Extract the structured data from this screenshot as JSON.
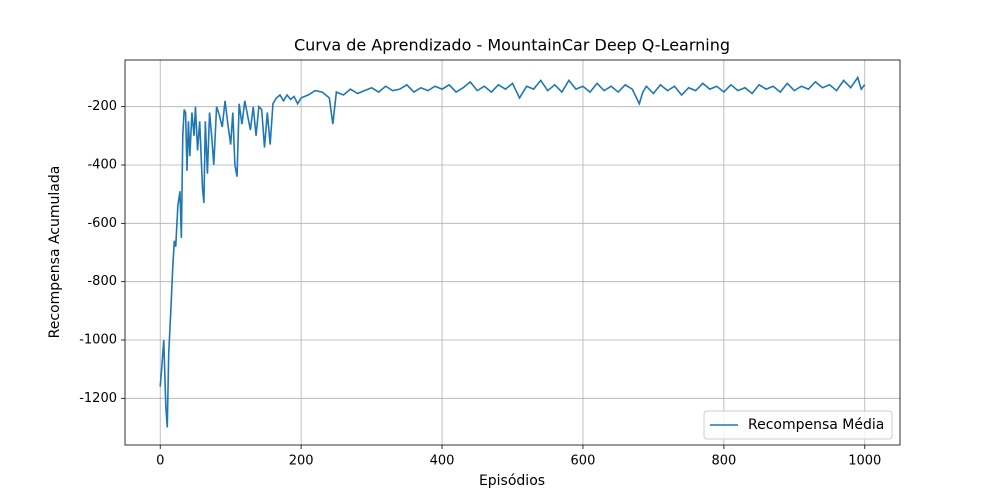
{
  "chart_data": {
    "type": "line",
    "title": "Curva de Aprendizado - MountainCar Deep Q-Learning",
    "x_label": "Episódios",
    "y_label": "Recompensa Acumulada",
    "x": [
      0,
      2,
      5,
      8,
      10,
      12,
      15,
      18,
      20,
      22,
      25,
      28,
      30,
      32,
      34,
      36,
      38,
      40,
      42,
      45,
      48,
      50,
      53,
      56,
      60,
      62,
      64,
      67,
      70,
      73,
      76,
      80,
      84,
      88,
      92,
      96,
      100,
      103,
      106,
      109,
      112,
      116,
      120,
      124,
      128,
      132,
      136,
      140,
      144,
      148,
      152,
      156,
      160,
      165,
      170,
      175,
      180,
      185,
      190,
      195,
      200,
      210,
      220,
      230,
      240,
      245,
      250,
      260,
      270,
      280,
      290,
      300,
      310,
      320,
      330,
      340,
      350,
      360,
      370,
      380,
      390,
      400,
      410,
      420,
      430,
      440,
      450,
      460,
      470,
      480,
      490,
      500,
      510,
      520,
      530,
      540,
      550,
      560,
      570,
      580,
      590,
      600,
      610,
      620,
      630,
      640,
      650,
      660,
      670,
      680,
      685,
      690,
      700,
      710,
      720,
      730,
      740,
      750,
      760,
      770,
      780,
      790,
      800,
      810,
      820,
      830,
      840,
      850,
      860,
      870,
      880,
      890,
      900,
      910,
      920,
      930,
      940,
      950,
      960,
      970,
      980,
      990,
      995,
      1000
    ],
    "series": [
      {
        "name": "Recompensa Média",
        "color": "#1f77b4",
        "values": [
          -1160,
          -1100,
          -1000,
          -1230,
          -1300,
          -1050,
          -900,
          -740,
          -660,
          -680,
          -540,
          -490,
          -650,
          -300,
          -210,
          -220,
          -420,
          -250,
          -370,
          -220,
          -300,
          -200,
          -350,
          -250,
          -480,
          -530,
          -250,
          -430,
          -220,
          -300,
          -400,
          -200,
          -230,
          -270,
          -180,
          -260,
          -330,
          -220,
          -400,
          -440,
          -190,
          -260,
          -180,
          -230,
          -280,
          -200,
          -300,
          -200,
          -210,
          -340,
          -220,
          -330,
          -190,
          -170,
          -160,
          -180,
          -160,
          -175,
          -165,
          -190,
          -170,
          -160,
          -145,
          -150,
          -170,
          -260,
          -150,
          -160,
          -140,
          -155,
          -145,
          -135,
          -150,
          -130,
          -145,
          -140,
          -125,
          -150,
          -135,
          -145,
          -130,
          -140,
          -125,
          -150,
          -135,
          -115,
          -145,
          -130,
          -150,
          -125,
          -140,
          -120,
          -170,
          -130,
          -140,
          -110,
          -145,
          -125,
          -150,
          -110,
          -140,
          -130,
          -150,
          -120,
          -145,
          -130,
          -150,
          -125,
          -140,
          -190,
          -150,
          -130,
          -155,
          -125,
          -145,
          -130,
          -160,
          -135,
          -145,
          -120,
          -140,
          -130,
          -150,
          -125,
          -145,
          -135,
          -155,
          -125,
          -140,
          -130,
          -150,
          -120,
          -145,
          -130,
          -140,
          -115,
          -135,
          -125,
          -145,
          -110,
          -135,
          -100,
          -140,
          -125
        ]
      }
    ],
    "xlim": [
      -50,
      1050
    ],
    "xticks": [
      0,
      200,
      400,
      600,
      800,
      1000
    ],
    "ylim": [
      -1360,
      -40
    ],
    "yticks": [
      -1200,
      -1000,
      -800,
      -600,
      -400,
      -200
    ],
    "grid": true,
    "legend": "lower right"
  }
}
